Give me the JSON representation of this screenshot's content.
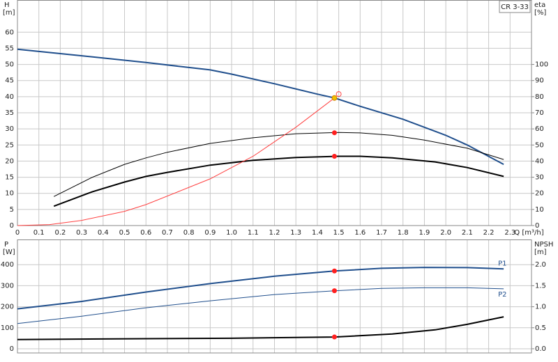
{
  "chart_data": [
    {
      "type": "line",
      "title": "CR 3-33",
      "ylabel": "H",
      "yunit": "[m]",
      "y2label": "eta",
      "y2unit": "[%]",
      "xlabel": "Q [m³/h]",
      "xlim": [
        0,
        2.4
      ],
      "ylim": [
        0,
        70
      ],
      "y2lim": [
        0,
        140
      ],
      "grid": true,
      "xticks": [
        0,
        0.1,
        0.2,
        0.3,
        0.4,
        0.5,
        0.6,
        0.7,
        0.8,
        0.9,
        {
          "value": 1,
          "label": "1.0"
        },
        1.1,
        1.2,
        1.3,
        1.4,
        1.5,
        1.6,
        1.7,
        1.8,
        1.9,
        {
          "value": 2,
          "label": "2.0"
        },
        2.1,
        2.2,
        2.3
      ],
      "yticks": [
        0,
        5,
        10,
        15,
        20,
        25,
        30,
        35,
        40,
        45,
        50,
        55,
        60
      ],
      "y2ticks": [
        0,
        10,
        20,
        30,
        40,
        50,
        60,
        70,
        80,
        90,
        100
      ],
      "series": [
        {
          "color": "#1f4e8c",
          "width": 2,
          "axis": "y",
          "x": [
            0,
            0.3,
            0.6,
            0.9,
            1.0,
            1.2,
            1.4,
            1.48,
            1.6,
            1.8,
            2.0,
            2.1,
            2.27
          ],
          "values": [
            54.7,
            52.7,
            50.6,
            48.3,
            47,
            44,
            40.8,
            39.6,
            37,
            33,
            28,
            25,
            19
          ]
        },
        {
          "color": "#000000",
          "width": 1,
          "axis": "y2",
          "x": [
            0.17,
            0.35,
            0.5,
            0.6,
            0.7,
            0.9,
            1.1,
            1.3,
            1.5,
            1.6,
            1.75,
            1.9,
            2.1,
            2.27
          ],
          "values": [
            18,
            30,
            38,
            42,
            45.5,
            51,
            54.5,
            57,
            57.8,
            57.5,
            56,
            53,
            48,
            41
          ]
        },
        {
          "color": "#000000",
          "width": 2,
          "axis": "y2",
          "x": [
            0.17,
            0.35,
            0.5,
            0.6,
            0.7,
            0.9,
            1.1,
            1.3,
            1.5,
            1.6,
            1.75,
            1.95,
            2.1,
            2.27
          ],
          "values": [
            12,
            21,
            27,
            30.5,
            33,
            37.5,
            40.5,
            42.2,
            43,
            43,
            42,
            39.5,
            36,
            30.5
          ]
        },
        {
          "color": "#ff4040",
          "width": 1,
          "axis": "y",
          "x": [
            0,
            0.15,
            0.3,
            0.5,
            0.6,
            0.9,
            1.1,
            1.3,
            1.48
          ],
          "values": [
            0,
            0.3,
            1.6,
            4.4,
            6.5,
            14.5,
            21.5,
            30.5,
            39.6
          ]
        },
        {
          "color": "#ff2020",
          "marker": "dot",
          "axis": "y2",
          "x": [
            1.48,
            1.48
          ],
          "values": [
            57.6,
            43
          ]
        },
        {
          "color": "#f0c000",
          "marker": "dot",
          "axis": "y",
          "x": [
            1.48
          ],
          "values": [
            39.6
          ]
        },
        {
          "color": "#ff4040",
          "marker": "ring",
          "axis": "y",
          "x": [
            1.5
          ],
          "values": [
            40.8
          ]
        }
      ]
    },
    {
      "type": "line",
      "ylabel": "P",
      "yunit": "[W]",
      "y2label": "NPSH",
      "y2unit": "[m]",
      "xlim": [
        0,
        2.4
      ],
      "ylim": [
        -20,
        520
      ],
      "y2lim": [
        -0.1,
        2.6
      ],
      "grid": true,
      "yticks": [
        0,
        100,
        200,
        300,
        400
      ],
      "y2ticks": [
        {
          "value": 0,
          "label": "0.0"
        },
        0.5,
        {
          "value": 1,
          "label": "1.0"
        },
        1.5,
        {
          "value": 2,
          "label": "2.0"
        }
      ],
      "series": [
        {
          "name": "P1",
          "color": "#1f4e8c",
          "width": 2,
          "axis": "y",
          "x": [
            0,
            0.3,
            0.6,
            0.9,
            1.2,
            1.48,
            1.7,
            1.9,
            2.1,
            2.27
          ],
          "values": [
            190,
            225,
            270,
            310,
            345,
            370,
            383,
            387,
            386,
            380
          ]
        },
        {
          "name": "P2",
          "color": "#1f4e8c",
          "width": 1,
          "axis": "y",
          "x": [
            0,
            0.3,
            0.6,
            0.9,
            1.2,
            1.48,
            1.7,
            1.9,
            2.1,
            2.27
          ],
          "values": [
            120,
            155,
            195,
            228,
            258,
            276,
            287,
            290,
            290,
            285
          ]
        },
        {
          "color": "#000000",
          "width": 2,
          "axis": "y2",
          "x": [
            0,
            0.6,
            1.0,
            1.48,
            1.75,
            1.95,
            2.1,
            2.27
          ],
          "values": [
            0.22,
            0.24,
            0.25,
            0.28,
            0.35,
            0.45,
            0.58,
            0.76
          ]
        },
        {
          "color": "#ff2020",
          "marker": "dot",
          "axis": "y",
          "x": [
            1.48,
            1.48
          ],
          "values": [
            370,
            276
          ]
        },
        {
          "color": "#ff2020",
          "marker": "dot",
          "axis": "y2",
          "x": [
            1.48
          ],
          "values": [
            0.28
          ]
        }
      ]
    }
  ]
}
